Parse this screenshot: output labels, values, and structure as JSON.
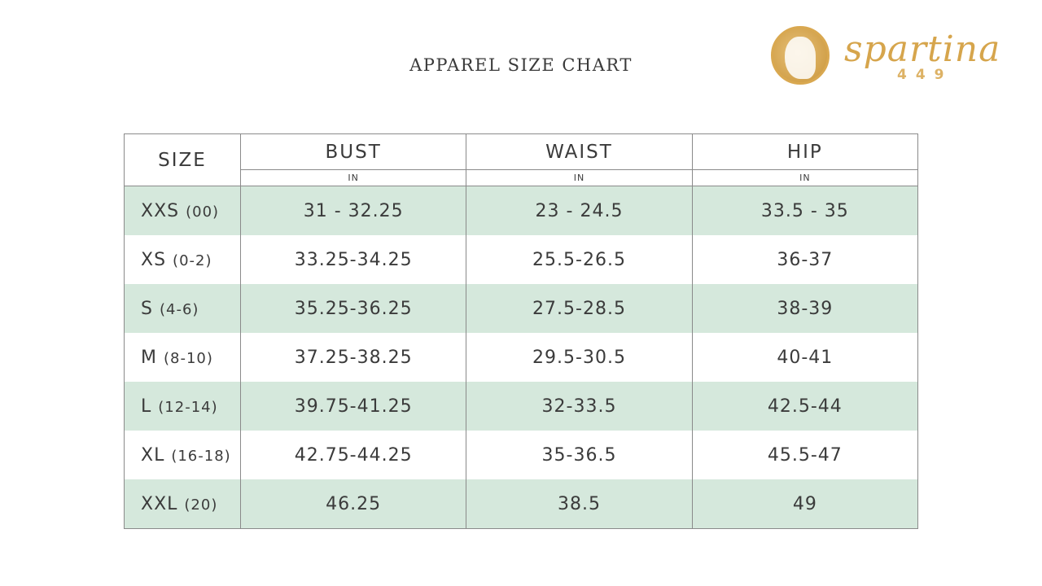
{
  "title": "APPAREL SIZE CHART",
  "logo": {
    "brand": "spartina",
    "number": "449",
    "color": "#d6a54c"
  },
  "colors": {
    "stripe": "#d5e8dc",
    "text": "#3b3b3b"
  },
  "table": {
    "headers": {
      "size": "SIZE",
      "bust": "BUST",
      "waist": "WAIST",
      "hip": "HIP",
      "unit": "IN"
    },
    "rows": [
      {
        "size": "XXS",
        "alt": "(00)",
        "bust": "31 - 32.25",
        "waist": "23 - 24.5",
        "hip": "33.5 - 35"
      },
      {
        "size": "XS",
        "alt": "(0-2)",
        "bust": "33.25-34.25",
        "waist": "25.5-26.5",
        "hip": "36-37"
      },
      {
        "size": "S",
        "alt": "(4-6)",
        "bust": "35.25-36.25",
        "waist": "27.5-28.5",
        "hip": "38-39"
      },
      {
        "size": "M",
        "alt": "(8-10)",
        "bust": "37.25-38.25",
        "waist": "29.5-30.5",
        "hip": "40-41"
      },
      {
        "size": "L",
        "alt": "(12-14)",
        "bust": "39.75-41.25",
        "waist": "32-33.5",
        "hip": "42.5-44"
      },
      {
        "size": "XL",
        "alt": "(16-18)",
        "bust": "42.75-44.25",
        "waist": "35-36.5",
        "hip": "45.5-47"
      },
      {
        "size": "XXL",
        "alt": "(20)",
        "bust": "46.25",
        "waist": "38.5",
        "hip": "49"
      }
    ]
  }
}
